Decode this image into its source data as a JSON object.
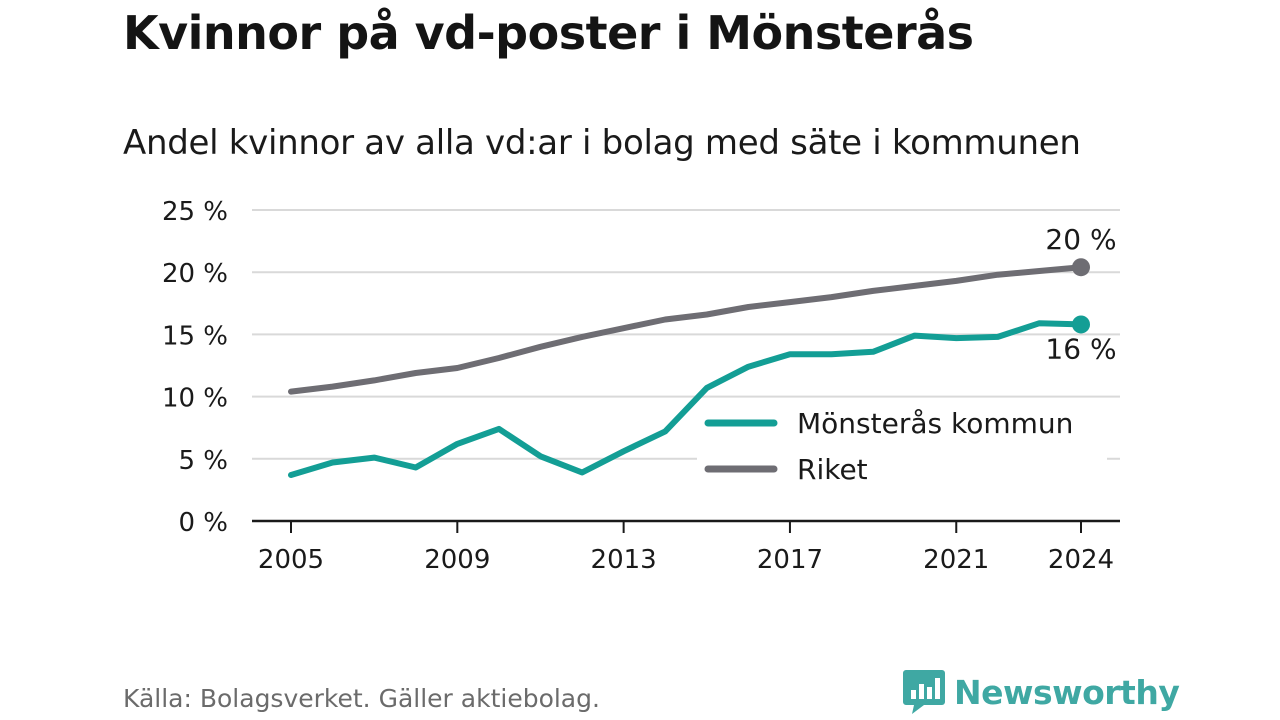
{
  "title": "Kvinnor på vd-poster i Mönsterås",
  "subtitle": "Andel kvinnor av alla vd:ar i bolag med säte i kommunen",
  "source": "Källa: Bolagsverket. Gäller aktiebolag.",
  "brand": "Newsworthy",
  "colors": {
    "monsteras": "#139e95",
    "riket": "#6e6d73",
    "brand": "#3fa8a3"
  },
  "chart_data": {
    "type": "line",
    "ylim": [
      0,
      25
    ],
    "xlim": [
      2005,
      2024
    ],
    "yticks": [
      0,
      5,
      10,
      15,
      20,
      25
    ],
    "ytick_labels": [
      "0 %",
      "5 %",
      "10 %",
      "15 %",
      "20 %",
      "25 %"
    ],
    "xticks": [
      2005,
      2009,
      2013,
      2017,
      2021,
      2024
    ],
    "xtick_labels": [
      "2005",
      "2009",
      "2013",
      "2017",
      "2021",
      "2024"
    ],
    "grid": true,
    "legend": "bottom-right",
    "x": [
      2005,
      2006,
      2007,
      2008,
      2009,
      2010,
      2011,
      2012,
      2013,
      2014,
      2015,
      2016,
      2017,
      2018,
      2019,
      2020,
      2021,
      2022,
      2023,
      2024
    ],
    "series": [
      {
        "name": "Mönsterås kommun",
        "color": "#139e95",
        "values": [
          3.7,
          4.7,
          5.1,
          4.3,
          6.2,
          7.4,
          5.2,
          3.9,
          5.6,
          7.2,
          10.7,
          12.4,
          13.4,
          13.4,
          13.6,
          14.9,
          14.7,
          14.8,
          15.9,
          15.8
        ],
        "end_label": "16 %"
      },
      {
        "name": "Riket",
        "color": "#6e6d73",
        "values": [
          10.4,
          10.8,
          11.3,
          11.9,
          12.3,
          13.1,
          14.0,
          14.8,
          15.5,
          16.2,
          16.6,
          17.2,
          17.6,
          18.0,
          18.5,
          18.9,
          19.3,
          19.8,
          20.1,
          20.4
        ],
        "end_label": "20 %"
      }
    ]
  }
}
